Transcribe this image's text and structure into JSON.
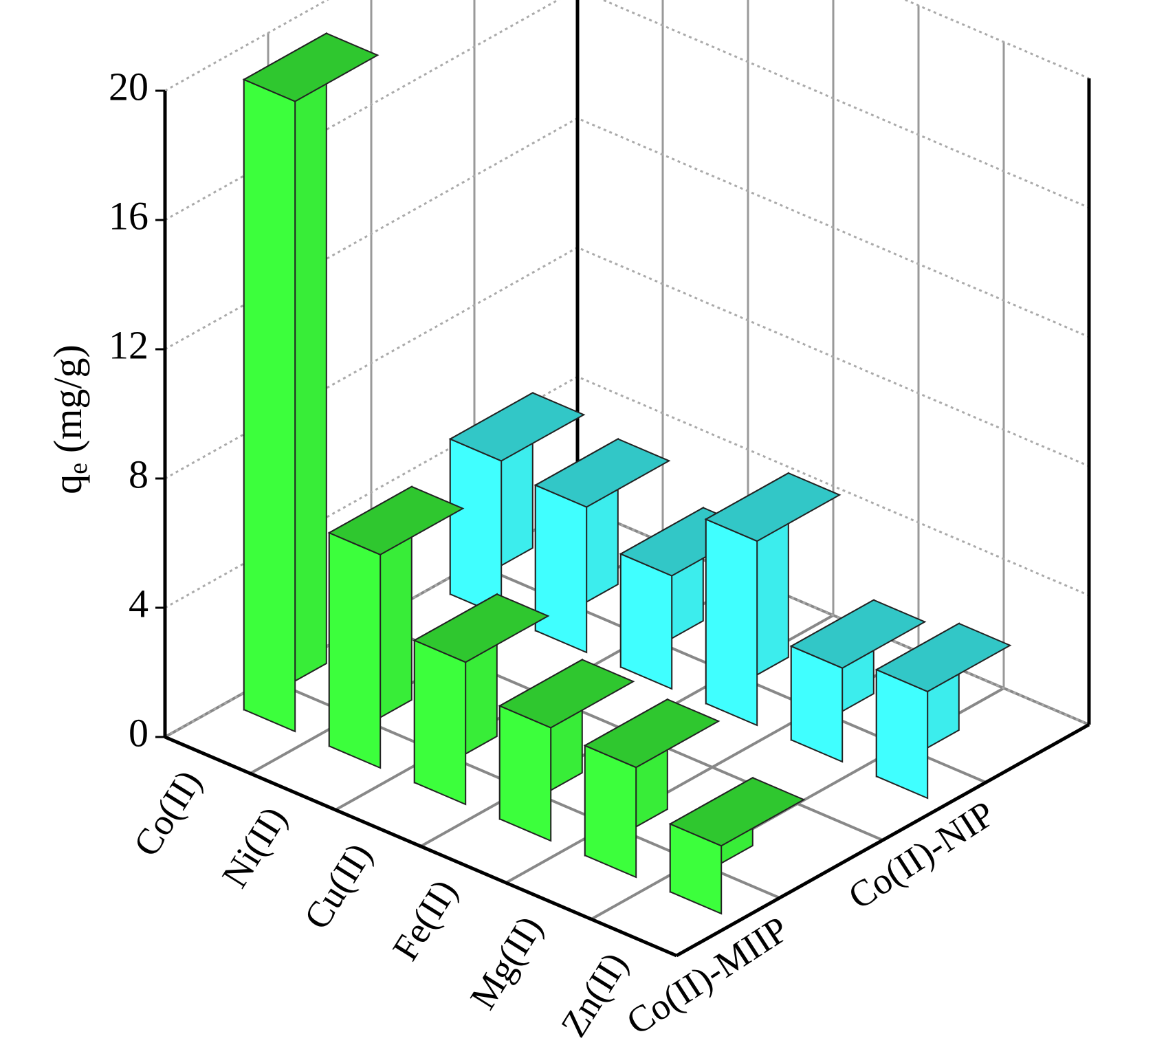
{
  "chart_data": {
    "type": "bar3d",
    "y_label": {
      "symbol": "q",
      "subscript": "e",
      "unit": "(mg/g)"
    },
    "categories": [
      "Co(II)",
      "Ni(II)",
      "Cu(II)",
      "Fe(II)",
      "Mg(II)",
      "Zn(II)"
    ],
    "series": [
      {
        "name": "Co(II)-MIIP",
        "color": "#3cff3c",
        "values": [
          19.5,
          6.6,
          4.4,
          3.5,
          3.4,
          2.1
        ]
      },
      {
        "name": "Co(II)-NIP",
        "color": "#40ffff",
        "values": [
          4.8,
          4.5,
          3.5,
          5.7,
          2.9,
          3.3
        ]
      }
    ],
    "ylim": [
      0,
      20
    ],
    "yticks": [
      0,
      4,
      8,
      12,
      16,
      20
    ],
    "grid": true
  }
}
